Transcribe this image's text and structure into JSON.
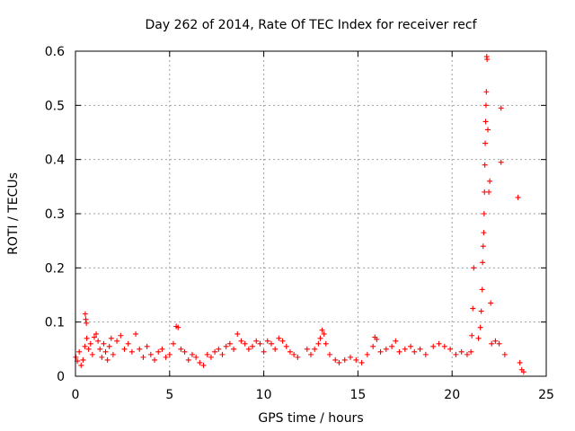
{
  "chart_data": {
    "type": "scatter",
    "title": "Day 262 of 2014, Rate Of TEC Index for receiver recf",
    "xlabel": "GPS time / hours",
    "ylabel": "ROTI / TECUs",
    "xlim": [
      0,
      25
    ],
    "ylim": [
      0,
      0.6
    ],
    "xticks": [
      0,
      5,
      10,
      15,
      20,
      25
    ],
    "yticks": [
      0,
      0.1,
      0.2,
      0.3,
      0.4,
      0.5,
      0.6
    ],
    "xtick_labels": [
      "0",
      "5",
      "10",
      "15",
      "20",
      "25"
    ],
    "ytick_labels": [
      "0",
      "0.1",
      "0.2",
      "0.3",
      "0.4",
      "0.5",
      "0.6"
    ],
    "grid": true,
    "marker": "+",
    "marker_color": "#ff0000",
    "series": [
      {
        "points": [
          [
            0.02,
            0.035
          ],
          [
            0.1,
            0.028
          ],
          [
            0.2,
            0.045
          ],
          [
            0.3,
            0.02
          ],
          [
            0.4,
            0.03
          ],
          [
            0.5,
            0.055
          ],
          [
            0.52,
            0.115
          ],
          [
            0.55,
            0.105
          ],
          [
            0.58,
            0.098
          ],
          [
            0.6,
            0.07
          ],
          [
            0.7,
            0.05
          ],
          [
            0.8,
            0.06
          ],
          [
            0.9,
            0.04
          ],
          [
            1.0,
            0.072
          ],
          [
            1.1,
            0.078
          ],
          [
            1.2,
            0.065
          ],
          [
            1.3,
            0.05
          ],
          [
            1.4,
            0.035
          ],
          [
            1.5,
            0.06
          ],
          [
            1.6,
            0.045
          ],
          [
            1.7,
            0.03
          ],
          [
            1.8,
            0.055
          ],
          [
            1.9,
            0.07
          ],
          [
            2.0,
            0.04
          ],
          [
            2.2,
            0.065
          ],
          [
            2.4,
            0.075
          ],
          [
            2.6,
            0.05
          ],
          [
            2.8,
            0.06
          ],
          [
            3.0,
            0.045
          ],
          [
            3.2,
            0.078
          ],
          [
            3.4,
            0.05
          ],
          [
            3.6,
            0.035
          ],
          [
            3.8,
            0.055
          ],
          [
            4.0,
            0.04
          ],
          [
            4.2,
            0.03
          ],
          [
            4.4,
            0.045
          ],
          [
            4.6,
            0.05
          ],
          [
            4.8,
            0.035
          ],
          [
            5.0,
            0.04
          ],
          [
            5.2,
            0.06
          ],
          [
            5.35,
            0.092
          ],
          [
            5.45,
            0.09
          ],
          [
            5.6,
            0.05
          ],
          [
            5.8,
            0.045
          ],
          [
            6.0,
            0.03
          ],
          [
            6.2,
            0.04
          ],
          [
            6.4,
            0.035
          ],
          [
            6.6,
            0.025
          ],
          [
            6.8,
            0.02
          ],
          [
            7.0,
            0.04
          ],
          [
            7.2,
            0.035
          ],
          [
            7.4,
            0.045
          ],
          [
            7.6,
            0.05
          ],
          [
            7.8,
            0.04
          ],
          [
            8.0,
            0.055
          ],
          [
            8.2,
            0.06
          ],
          [
            8.4,
            0.05
          ],
          [
            8.6,
            0.078
          ],
          [
            8.8,
            0.065
          ],
          [
            9.0,
            0.06
          ],
          [
            9.2,
            0.05
          ],
          [
            9.4,
            0.055
          ],
          [
            9.6,
            0.065
          ],
          [
            9.8,
            0.06
          ],
          [
            10.0,
            0.045
          ],
          [
            10.2,
            0.065
          ],
          [
            10.4,
            0.06
          ],
          [
            10.6,
            0.05
          ],
          [
            10.8,
            0.07
          ],
          [
            11.0,
            0.065
          ],
          [
            11.2,
            0.055
          ],
          [
            11.4,
            0.045
          ],
          [
            11.6,
            0.04
          ],
          [
            11.8,
            0.035
          ],
          [
            12.3,
            0.05
          ],
          [
            12.5,
            0.04
          ],
          [
            12.7,
            0.05
          ],
          [
            12.9,
            0.06
          ],
          [
            13.0,
            0.07
          ],
          [
            13.1,
            0.085
          ],
          [
            13.2,
            0.078
          ],
          [
            13.3,
            0.06
          ],
          [
            13.5,
            0.04
          ],
          [
            13.8,
            0.03
          ],
          [
            14.0,
            0.025
          ],
          [
            14.3,
            0.03
          ],
          [
            14.6,
            0.035
          ],
          [
            14.9,
            0.03
          ],
          [
            15.2,
            0.025
          ],
          [
            15.5,
            0.04
          ],
          [
            15.8,
            0.055
          ],
          [
            15.9,
            0.072
          ],
          [
            16.0,
            0.068
          ],
          [
            16.2,
            0.045
          ],
          [
            16.5,
            0.05
          ],
          [
            16.8,
            0.055
          ],
          [
            17.0,
            0.065
          ],
          [
            17.2,
            0.045
          ],
          [
            17.5,
            0.05
          ],
          [
            17.8,
            0.055
          ],
          [
            18.0,
            0.045
          ],
          [
            18.3,
            0.05
          ],
          [
            18.6,
            0.04
          ],
          [
            19.0,
            0.055
          ],
          [
            19.3,
            0.06
          ],
          [
            19.6,
            0.055
          ],
          [
            19.9,
            0.05
          ],
          [
            20.2,
            0.04
          ],
          [
            20.5,
            0.045
          ],
          [
            20.8,
            0.04
          ],
          [
            21.0,
            0.045
          ],
          [
            21.05,
            0.075
          ],
          [
            21.1,
            0.125
          ],
          [
            21.15,
            0.2
          ],
          [
            21.4,
            0.07
          ],
          [
            21.5,
            0.09
          ],
          [
            21.55,
            0.12
          ],
          [
            21.6,
            0.16
          ],
          [
            21.62,
            0.21
          ],
          [
            21.65,
            0.24
          ],
          [
            21.68,
            0.265
          ],
          [
            21.7,
            0.3
          ],
          [
            21.72,
            0.34
          ],
          [
            21.74,
            0.39
          ],
          [
            21.76,
            0.43
          ],
          [
            21.78,
            0.47
          ],
          [
            21.8,
            0.5
          ],
          [
            21.82,
            0.525
          ],
          [
            21.84,
            0.59
          ],
          [
            21.86,
            0.585
          ],
          [
            21.9,
            0.455
          ],
          [
            21.95,
            0.34
          ],
          [
            22.0,
            0.36
          ],
          [
            22.05,
            0.135
          ],
          [
            22.1,
            0.06
          ],
          [
            22.3,
            0.065
          ],
          [
            22.5,
            0.06
          ],
          [
            22.6,
            0.395
          ],
          [
            22.6,
            0.495
          ],
          [
            22.8,
            0.04
          ],
          [
            23.5,
            0.33
          ],
          [
            23.6,
            0.025
          ],
          [
            23.7,
            0.012
          ],
          [
            23.8,
            0.008
          ]
        ]
      }
    ]
  }
}
